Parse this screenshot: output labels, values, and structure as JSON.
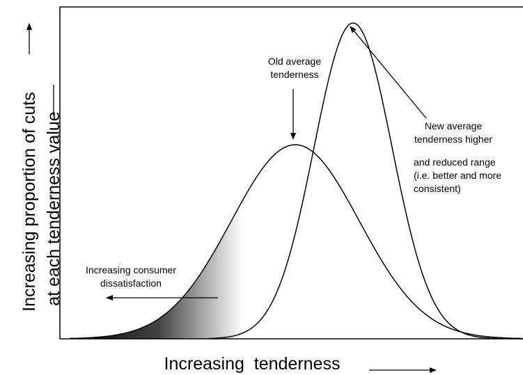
{
  "axes": {
    "y_label": [
      "Increasing proportion of cuts",
      "at each tenderness value"
    ],
    "x_label": "Increasing  tenderness"
  },
  "annotations": {
    "old_average": [
      "Old average",
      "tenderness"
    ],
    "new_average": [
      "New average",
      "tenderness higher"
    ],
    "reduced_range": [
      "and reduced range",
      "(i.e. better and more",
      "consistent)"
    ],
    "dissatisfaction": [
      "Increasing consumer",
      "dissatisfaction"
    ]
  }
}
